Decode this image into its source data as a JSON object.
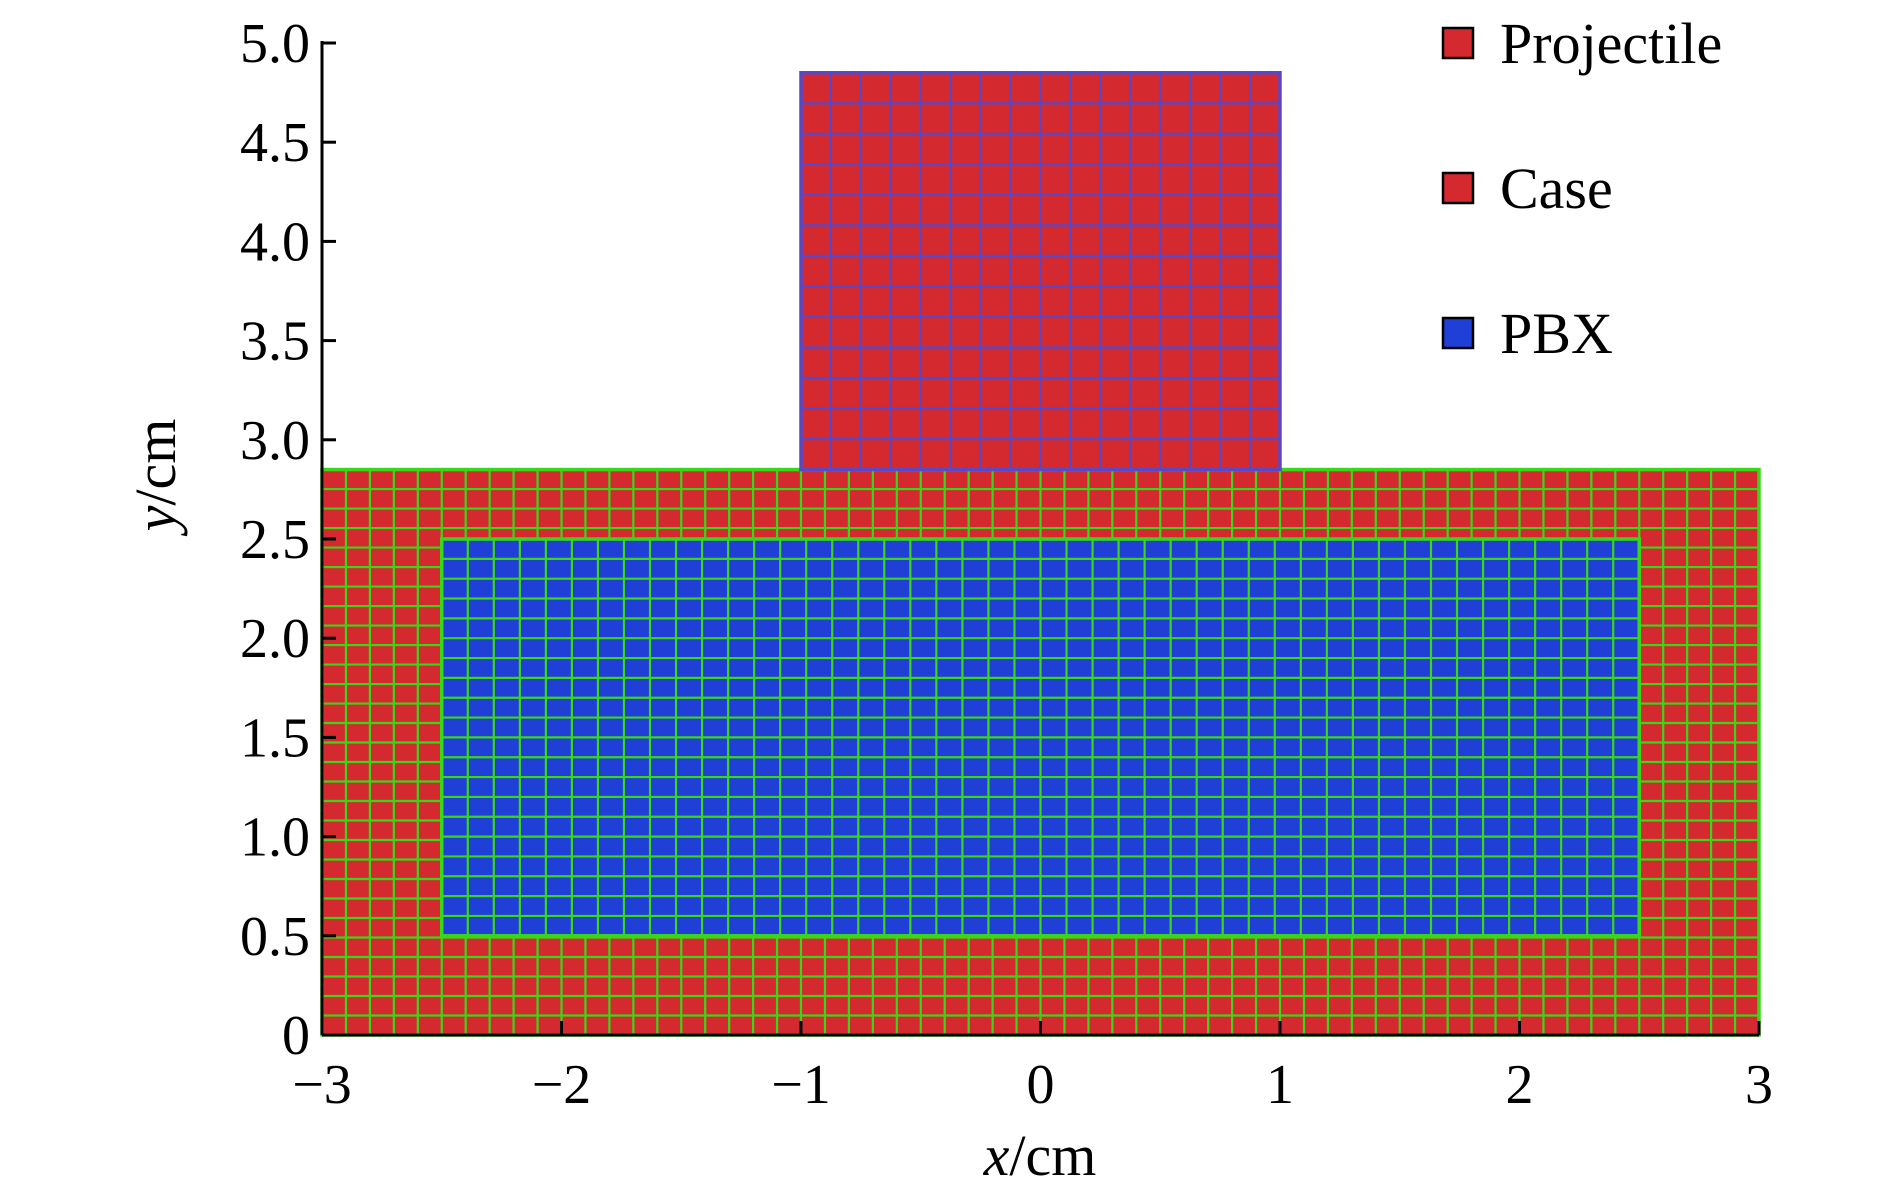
{
  "chart_data": {
    "type": "diagram",
    "xlabel": {
      "italic": "x",
      "unit": "/cm"
    },
    "ylabel": {
      "italic": "y",
      "unit": "/cm"
    },
    "xlim": [
      -3,
      3
    ],
    "ylim": [
      0,
      5.0
    ],
    "x_ticks": [
      "−3",
      "−2",
      "−1",
      "0",
      "1",
      "2",
      "3"
    ],
    "x_tick_values": [
      -3,
      -2,
      -1,
      0,
      1,
      2,
      3
    ],
    "y_ticks": [
      "0",
      "0.5",
      "1.0",
      "1.5",
      "2.0",
      "2.5",
      "3.0",
      "3.5",
      "4.0",
      "4.5",
      "5.0"
    ],
    "y_tick_values": [
      0,
      0.5,
      1.0,
      1.5,
      2.0,
      2.5,
      3.0,
      3.5,
      4.0,
      4.5,
      5.0
    ],
    "regions": [
      {
        "name": "Case",
        "x": [
          -3,
          3
        ],
        "y": [
          0,
          2.85
        ],
        "fill": "#d42a2f",
        "mesh": "#38d818",
        "cells_x": 60,
        "cells_y": 29
      },
      {
        "name": "PBX",
        "x": [
          -2.5,
          2.5
        ],
        "y": [
          0.5,
          2.5
        ],
        "fill": "#1f3fd6",
        "mesh": "#38d818",
        "cells_x": 46,
        "cells_y": 20
      },
      {
        "name": "Projectile",
        "x": [
          -1,
          1
        ],
        "y": [
          2.85,
          4.85
        ],
        "fill": "#d42a2f",
        "mesh": "#5848c8",
        "cells_x": 16,
        "cells_y": 13
      }
    ],
    "legend": {
      "position": "top-right",
      "entries": [
        {
          "label": "Projectile",
          "color": "#d42a2f"
        },
        {
          "label": "Case",
          "color": "#d42a2f"
        },
        {
          "label": "PBX",
          "color": "#1f3fd6"
        }
      ]
    }
  }
}
